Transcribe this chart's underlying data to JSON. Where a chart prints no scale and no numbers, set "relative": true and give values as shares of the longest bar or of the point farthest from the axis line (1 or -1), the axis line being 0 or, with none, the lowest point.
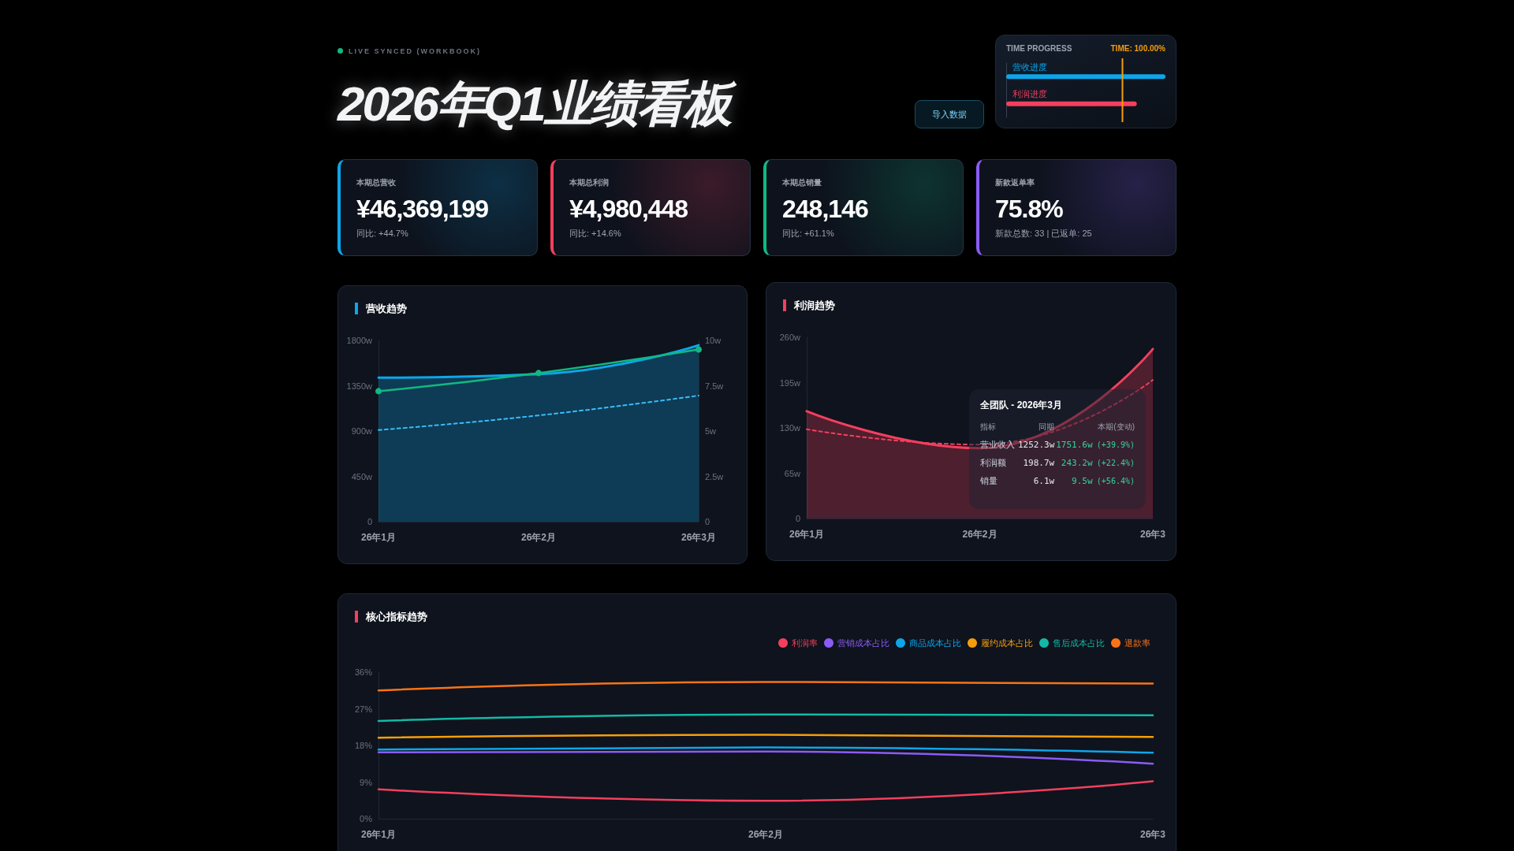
{
  "chart_data": [
    {
      "type": "other",
      "title": "2026年Q1业绩看板",
      "subtitle": "LIVE SYNCED (WORKBOOK)",
      "annotations": [
        "导入数据",
        "本期总营收",
        "¥46,369,199",
        "同比: +44.7%",
        "本期总利润",
        "¥4,980,448",
        "同比: +14.6%",
        "本期总销量",
        "248,146",
        "同比: +61.1%",
        "新款返单率",
        "75.8%",
        "新款总数: 33 | 已返单: 25"
      ]
    },
    {
      "type": "bar",
      "orientation": "horizontal",
      "relative": true,
      "title": "TIME PROGRESS",
      "annotations": [
        "TIME: 100.00%"
      ],
      "categories": [
        "营收进度",
        "利润进度"
      ],
      "values": [
        1,
        0.82
      ],
      "colors": [
        "#0ea5e9",
        "#f43f5e"
      ],
      "ref_lines": [
        {
          "axis": "x",
          "value": 0.73,
          "color": "#f59e0b"
        }
      ]
    },
    {
      "type": "line",
      "title": "营收趋势",
      "categories": [
        "26年1月",
        "26年2月",
        "26年3月"
      ],
      "ylim": [
        0,
        1800
      ],
      "yticks": [
        0,
        {
          "value": 450,
          "label": "450w"
        },
        {
          "value": 900,
          "label": "900w"
        },
        {
          "value": 1350,
          "label": "1350w"
        },
        {
          "value": 1800,
          "label": "1800w"
        }
      ],
      "y2lim": [
        0,
        10
      ],
      "y2ticks": [
        0,
        {
          "value": 2.5,
          "label": "2.5w"
        },
        {
          "value": 5,
          "label": "5w"
        },
        {
          "value": 7.5,
          "label": "7.5w"
        },
        {
          "value": 10,
          "label": "10w"
        }
      ],
      "grid": false,
      "marker": "none",
      "series": [
        {
          "type": "area",
          "color": "#0ea5e9",
          "values": [
            1430,
            1465,
            1752
          ]
        },
        {
          "type": "line",
          "color": "#38bdf8",
          "line_style": "dashed",
          "values": [
            910,
            1055,
            1252
          ]
        },
        {
          "type": "line",
          "color": "#10b981",
          "axis": "y2",
          "marker": "circle",
          "values": [
            7.2,
            8.2,
            9.5
          ]
        }
      ]
    },
    {
      "type": "line",
      "title": "利润趋势",
      "categories": [
        "26年1月",
        "26年2月",
        "26年3"
      ],
      "ylim": [
        0,
        260
      ],
      "yticks": [
        0,
        {
          "value": 65,
          "label": "65w"
        },
        {
          "value": 130,
          "label": "130w"
        },
        {
          "value": 195,
          "label": "195w"
        },
        {
          "value": 260,
          "label": "260w"
        }
      ],
      "grid": false,
      "marker": "none",
      "series": [
        {
          "type": "area",
          "color": "#f43f5e",
          "values": [
            154,
            101,
            243.2
          ]
        },
        {
          "type": "line",
          "color": "#f43f5e",
          "line_style": "dashed",
          "values": [
            128,
            106,
            198.7
          ]
        }
      ],
      "annotations": [
        "全团队 - 2026年3月",
        "指标",
        "同期",
        "本期(变动)",
        "营业收入",
        "1252.3w",
        "1751.6w",
        "(+39.9%)",
        "利润额",
        "198.7w",
        "243.2w",
        "(+22.4%)",
        "销量",
        "6.1w",
        "9.5w",
        "(+56.4%)"
      ]
    },
    {
      "type": "line",
      "title": "核心指标趋势",
      "categories": [
        "26年1月",
        "26年2月",
        "26年3"
      ],
      "ylim": [
        0,
        36
      ],
      "yticks": [
        {
          "value": 0,
          "label": "0%"
        },
        {
          "value": 9,
          "label": "9%"
        },
        {
          "value": 18,
          "label": "18%"
        },
        {
          "value": 27,
          "label": "27%"
        },
        {
          "value": 36,
          "label": "36%"
        }
      ],
      "grid": false,
      "marker": "none",
      "legend": "top right",
      "series": [
        {
          "name": "利润率",
          "color": "#f43f5e",
          "values": [
            7.2,
            4.4,
            9.2
          ]
        },
        {
          "name": "营销成本占比",
          "color": "#8b5cf6",
          "values": [
            16.3,
            16.5,
            13.5
          ]
        },
        {
          "name": "商品成本占比",
          "color": "#0ea5e9",
          "values": [
            17.0,
            17.5,
            16.2
          ]
        },
        {
          "name": "履约成本占比",
          "color": "#f59e0b",
          "values": [
            19.9,
            20.6,
            20.1
          ]
        },
        {
          "name": "售后成本占比",
          "color": "#14b8a6",
          "values": [
            24.0,
            25.6,
            25.4
          ]
        },
        {
          "name": "退款率",
          "color": "#f97316",
          "values": [
            31.5,
            33.6,
            33.2
          ]
        }
      ]
    }
  ]
}
